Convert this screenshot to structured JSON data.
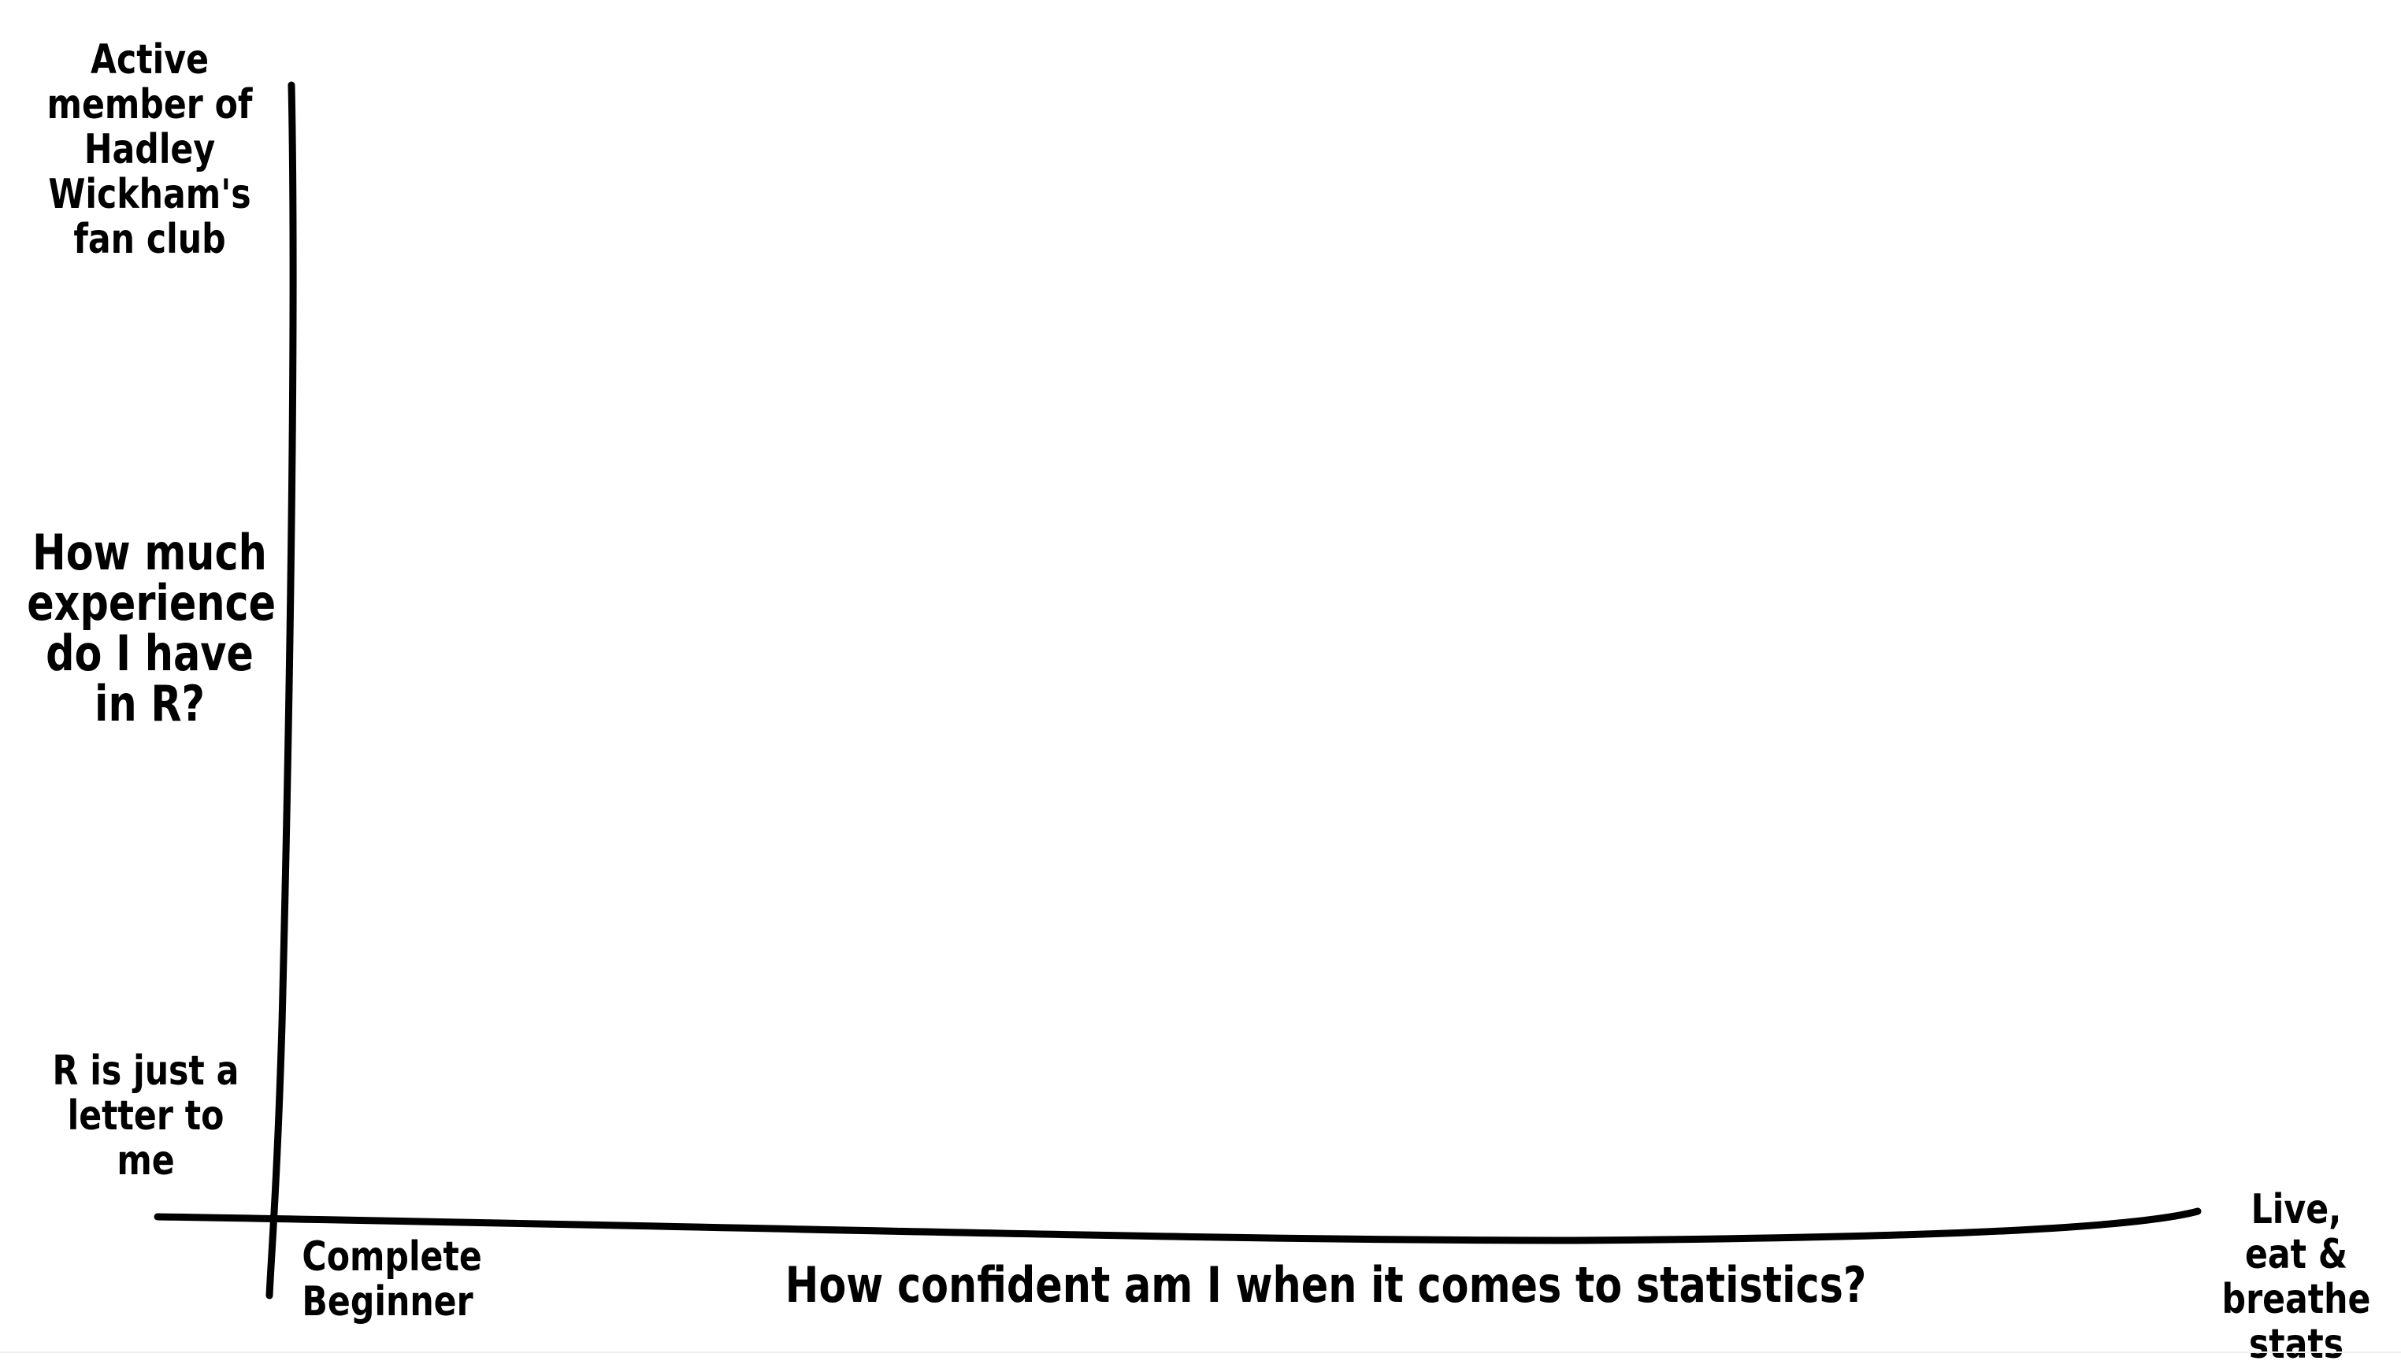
{
  "diagram": {
    "y_axis": {
      "title": "How much experience do I have in R?",
      "top_label": "Active member of Hadley Wickham's fan club",
      "bottom_label": "R is just a letter to me"
    },
    "x_axis": {
      "title": "How confident am I when it comes to statistics?",
      "left_label": "Complete Beginner",
      "right_label": "Live, eat & breathe stats"
    },
    "line_color": "#000000",
    "background_color": "#ffffff"
  }
}
